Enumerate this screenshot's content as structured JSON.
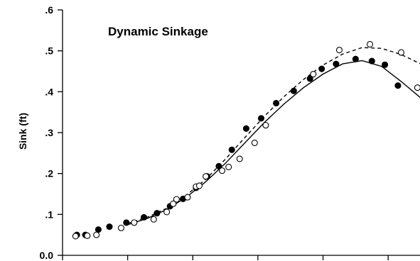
{
  "chart_data": {
    "type": "scatter",
    "title": "Dynamic Sinkage",
    "xlabel": "",
    "ylabel": "Sink (ft)",
    "ylim": [
      0,
      0.6
    ],
    "xlim": [
      0,
      5.5
    ],
    "yticks": [
      0,
      0.1,
      0.2,
      0.3,
      0.4,
      0.5,
      0.6
    ],
    "ytick_labels": [
      "0.0",
      ".1",
      ".2",
      ".3",
      ".4",
      ".5",
      ".6"
    ],
    "xticks": [
      0,
      1,
      2,
      3,
      4,
      5
    ],
    "grid": false,
    "series": [
      {
        "marker": "filled-circle",
        "color": "#000000",
        "x": [
          0.22,
          0.35,
          0.55,
          0.72,
          0.98,
          1.25,
          1.45,
          1.65,
          1.85,
          2.05,
          2.22,
          2.4,
          2.6,
          2.82,
          3.05,
          3.28,
          3.55,
          3.8,
          3.98,
          4.2,
          4.5,
          4.75,
          4.95,
          5.15
        ],
        "y": [
          0.05,
          0.05,
          0.063,
          0.07,
          0.08,
          0.093,
          0.103,
          0.12,
          0.138,
          0.165,
          0.193,
          0.218,
          0.258,
          0.31,
          0.335,
          0.372,
          0.402,
          0.432,
          0.456,
          0.468,
          0.48,
          0.475,
          0.466,
          0.415
        ]
      },
      {
        "marker": "open-circle",
        "color": "#000000",
        "x": [
          0.2,
          0.38,
          0.52,
          0.9,
          1.1,
          1.4,
          1.6,
          1.7,
          1.75,
          1.92,
          2.05,
          2.1,
          2.2,
          2.45,
          2.55,
          2.72,
          2.95,
          3.12,
          3.85,
          4.25,
          4.72,
          5.2,
          5.45
        ],
        "y": [
          0.047,
          0.048,
          0.05,
          0.067,
          0.08,
          0.088,
          0.106,
          0.126,
          0.137,
          0.142,
          0.168,
          0.17,
          0.193,
          0.207,
          0.216,
          0.236,
          0.275,
          0.318,
          0.443,
          0.502,
          0.516,
          0.496,
          0.41
        ]
      },
      {
        "line_style": "solid",
        "color": "#000000",
        "x": [
          1.0,
          1.3,
          1.6,
          1.9,
          2.2,
          2.5,
          2.8,
          3.1,
          3.4,
          3.7,
          4.0,
          4.3,
          4.6,
          4.9,
          5.2,
          5.5
        ],
        "y": [
          0.075,
          0.09,
          0.112,
          0.142,
          0.18,
          0.225,
          0.275,
          0.325,
          0.37,
          0.41,
          0.443,
          0.468,
          0.476,
          0.462,
          0.425,
          0.385
        ]
      },
      {
        "line_style": "dashed",
        "color": "#000000",
        "x": [
          1.0,
          1.3,
          1.6,
          1.9,
          2.2,
          2.5,
          2.8,
          3.1,
          3.4,
          3.7,
          4.0,
          4.3,
          4.6,
          4.9,
          5.2,
          5.5
        ],
        "y": [
          0.078,
          0.093,
          0.115,
          0.147,
          0.186,
          0.235,
          0.288,
          0.34,
          0.388,
          0.43,
          0.465,
          0.492,
          0.508,
          0.506,
          0.491,
          0.468
        ]
      }
    ]
  }
}
